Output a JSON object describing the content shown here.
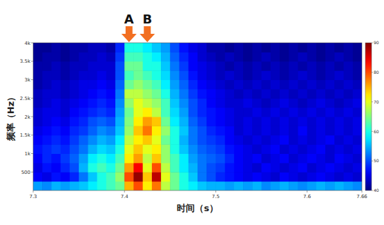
{
  "chart_data": {
    "type": "heatmap",
    "x_label": "时间（s）",
    "y_label": "频率（Hz）",
    "xlim": [
      7.3,
      7.66
    ],
    "xticks": [
      7.3,
      7.4,
      7.5,
      7.6,
      7.66
    ],
    "ylim": [
      0,
      4000
    ],
    "yticks": [
      500,
      {
        "value": 1000,
        "label": "1k"
      },
      {
        "value": 1500,
        "label": "1.5k"
      },
      {
        "value": 2000,
        "label": "2k"
      },
      {
        "value": 2500,
        "label": "2.5k"
      },
      {
        "value": 3000,
        "label": "3k"
      },
      {
        "value": 3500,
        "label": "3.5k"
      },
      {
        "value": 4000,
        "label": "4k"
      }
    ],
    "x_bins": [
      7.3,
      7.31,
      7.32,
      7.33,
      7.34,
      7.35,
      7.36,
      7.37,
      7.38,
      7.39,
      7.4,
      7.41,
      7.42,
      7.43,
      7.44,
      7.45,
      7.46,
      7.47,
      7.48,
      7.49,
      7.5,
      7.51,
      7.52,
      7.53,
      7.54,
      7.55,
      7.56,
      7.57,
      7.58,
      7.59,
      7.6,
      7.61,
      7.62,
      7.63,
      7.64,
      7.65,
      7.66
    ],
    "y_bins": [
      0,
      250,
      500,
      750,
      1000,
      1250,
      1500,
      1750,
      2000,
      2250,
      2500,
      2750,
      3000,
      3250,
      3500,
      3750,
      4000
    ],
    "cells": [
      [
        54,
        53,
        55,
        54,
        55,
        56,
        58,
        60,
        62,
        64,
        75,
        80,
        72,
        78,
        68,
        64,
        60,
        58,
        56,
        55,
        55,
        54,
        55,
        54,
        55,
        53,
        54,
        55,
        54,
        53,
        54,
        55,
        54,
        55,
        54,
        53
      ],
      [
        46,
        45,
        47,
        46,
        48,
        52,
        56,
        60,
        62,
        66,
        80,
        89,
        74,
        87,
        70,
        64,
        60,
        56,
        52,
        50,
        48,
        47,
        46,
        45,
        46,
        45,
        44,
        46,
        45,
        44,
        45,
        46,
        45,
        44,
        45,
        44
      ],
      [
        45,
        47,
        46,
        48,
        50,
        55,
        60,
        62,
        60,
        64,
        76,
        84,
        70,
        80,
        68,
        62,
        58,
        55,
        52,
        50,
        49,
        47,
        46,
        45,
        44,
        46,
        45,
        44,
        45,
        46,
        44,
        45,
        46,
        45,
        44,
        45
      ],
      [
        46,
        48,
        47,
        49,
        51,
        54,
        58,
        60,
        58,
        62,
        72,
        76,
        68,
        74,
        66,
        62,
        58,
        54,
        52,
        51,
        50,
        48,
        46,
        45,
        46,
        44,
        45,
        46,
        44,
        45,
        46,
        45,
        44,
        46,
        45,
        44
      ],
      [
        47,
        48,
        49,
        48,
        50,
        52,
        55,
        57,
        56,
        60,
        70,
        74,
        70,
        72,
        66,
        60,
        56,
        53,
        51,
        50,
        49,
        47,
        46,
        45,
        44,
        45,
        46,
        44,
        45,
        44,
        45,
        46,
        44,
        45,
        44,
        45
      ],
      [
        46,
        47,
        48,
        47,
        49,
        51,
        53,
        55,
        54,
        58,
        68,
        72,
        74,
        70,
        64,
        60,
        55,
        52,
        50,
        49,
        48,
        46,
        45,
        44,
        45,
        44,
        45,
        46,
        44,
        45,
        44,
        45,
        46,
        44,
        45,
        44
      ],
      [
        45,
        46,
        47,
        46,
        48,
        49,
        51,
        53,
        52,
        56,
        66,
        74,
        78,
        72,
        66,
        60,
        56,
        52,
        50,
        48,
        47,
        46,
        44,
        45,
        44,
        45,
        44,
        45,
        44,
        46,
        44,
        45,
        44,
        45,
        44,
        45
      ],
      [
        44,
        45,
        46,
        45,
        47,
        48,
        50,
        51,
        50,
        55,
        65,
        72,
        76,
        74,
        64,
        58,
        55,
        51,
        49,
        47,
        46,
        45,
        44,
        45,
        44,
        45,
        44,
        45,
        44,
        45,
        44,
        45,
        44,
        45,
        44,
        45
      ],
      [
        44,
        45,
        45,
        44,
        46,
        47,
        48,
        49,
        48,
        54,
        64,
        70,
        72,
        68,
        62,
        57,
        54,
        50,
        48,
        47,
        46,
        45,
        44,
        44,
        45,
        44,
        45,
        44,
        45,
        44,
        45,
        44,
        45,
        44,
        45,
        44
      ],
      [
        43,
        44,
        45,
        44,
        45,
        46,
        47,
        48,
        47,
        53,
        66,
        70,
        68,
        66,
        62,
        56,
        53,
        50,
        48,
        46,
        45,
        44,
        44,
        45,
        44,
        43,
        44,
        45,
        44,
        43,
        44,
        45,
        44,
        43,
        44,
        45
      ],
      [
        43,
        44,
        44,
        43,
        44,
        45,
        46,
        47,
        46,
        52,
        68,
        68,
        66,
        64,
        60,
        55,
        52,
        49,
        47,
        46,
        45,
        44,
        43,
        44,
        43,
        44,
        43,
        44,
        43,
        44,
        43,
        44,
        43,
        44,
        43,
        44
      ],
      [
        42,
        43,
        44,
        43,
        44,
        45,
        45,
        46,
        45,
        51,
        64,
        66,
        64,
        62,
        58,
        54,
        51,
        48,
        46,
        45,
        44,
        43,
        44,
        43,
        44,
        43,
        44,
        43,
        44,
        43,
        44,
        43,
        44,
        43,
        44,
        43
      ],
      [
        42,
        43,
        43,
        42,
        43,
        44,
        44,
        45,
        44,
        50,
        62,
        64,
        62,
        60,
        57,
        53,
        50,
        47,
        45,
        44,
        43,
        44,
        43,
        42,
        43,
        44,
        43,
        42,
        43,
        44,
        43,
        42,
        43,
        44,
        43,
        42
      ],
      [
        42,
        42,
        43,
        42,
        43,
        43,
        44,
        44,
        44,
        50,
        64,
        64,
        60,
        60,
        56,
        52,
        49,
        46,
        45,
        44,
        43,
        42,
        43,
        42,
        43,
        42,
        43,
        42,
        43,
        42,
        43,
        42,
        43,
        42,
        43,
        42
      ],
      [
        41,
        42,
        42,
        41,
        42,
        43,
        43,
        44,
        43,
        49,
        62,
        62,
        60,
        58,
        55,
        51,
        48,
        46,
        44,
        43,
        42,
        43,
        42,
        41,
        42,
        43,
        42,
        41,
        42,
        43,
        42,
        41,
        42,
        43,
        42,
        41
      ],
      [
        41,
        41,
        42,
        41,
        42,
        42,
        43,
        43,
        42,
        48,
        60,
        60,
        58,
        56,
        54,
        50,
        47,
        45,
        44,
        42,
        42,
        41,
        42,
        41,
        42,
        41,
        42,
        41,
        42,
        41,
        42,
        41,
        42,
        41,
        42,
        41
      ]
    ],
    "colorbar": {
      "range": [
        40,
        90
      ],
      "ticks": [
        40,
        50,
        60,
        70,
        80,
        90
      ]
    },
    "annotations": [
      {
        "label": "A",
        "x": 7.405
      },
      {
        "label": "B",
        "x": 7.425
      }
    ]
  }
}
